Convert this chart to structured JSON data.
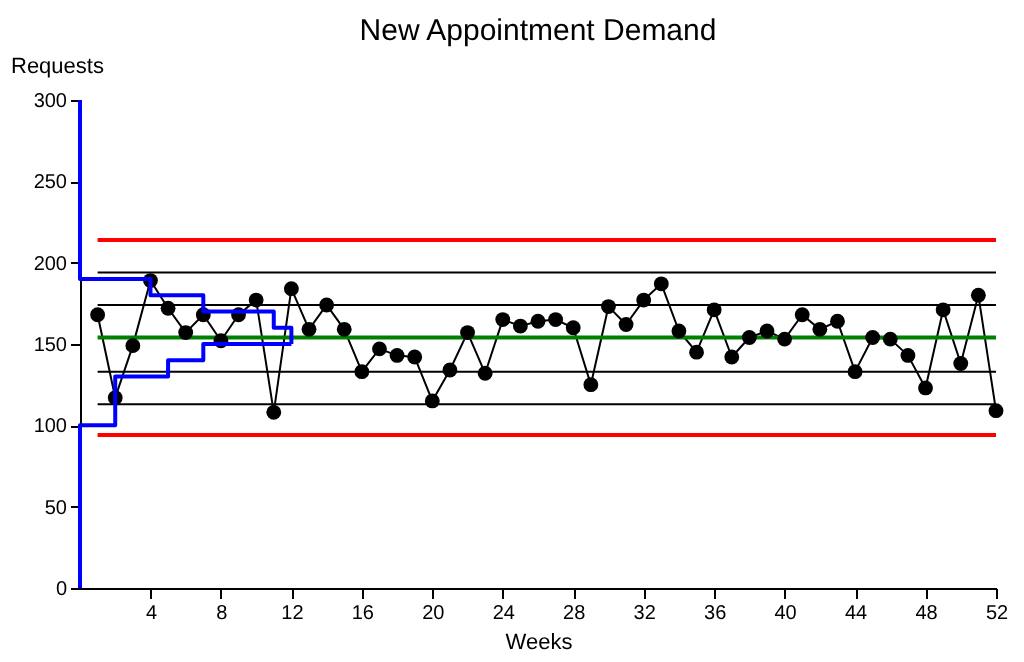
{
  "chart_data": {
    "type": "line",
    "title": "New Appointment Demand",
    "xlabel": "Weeks",
    "ylabel": "Requests",
    "xlim": [
      0,
      52
    ],
    "xticks": [
      4,
      8,
      12,
      16,
      20,
      24,
      28,
      32,
      36,
      40,
      44,
      48,
      52
    ],
    "ylim": [
      0,
      300
    ],
    "yticks": [
      0,
      50,
      100,
      150,
      200,
      250,
      300
    ],
    "grid": false,
    "series": [
      {
        "color": "#000000",
        "marker": "circle",
        "line_style": "solid",
        "x": [
          1,
          2,
          3,
          4,
          5,
          6,
          7,
          8,
          9,
          10,
          11,
          12,
          13,
          14,
          15,
          16,
          17,
          18,
          19,
          20,
          21,
          22,
          23,
          24,
          25,
          26,
          27,
          28,
          29,
          30,
          31,
          32,
          33,
          34,
          35,
          36,
          37,
          38,
          39,
          40,
          41,
          42,
          43,
          44,
          45,
          46,
          47,
          48,
          49,
          50,
          51,
          52
        ],
        "values": [
          168,
          117,
          149,
          189,
          172,
          157,
          168,
          152,
          168,
          177,
          108,
          184,
          159,
          174,
          159,
          133,
          147,
          143,
          142,
          115,
          134,
          157,
          132,
          165,
          161,
          164,
          165,
          160,
          125,
          173,
          162,
          177,
          187,
          158,
          145,
          171,
          142,
          154,
          158,
          153,
          168,
          159,
          164,
          133,
          154,
          153,
          143,
          123,
          171,
          138,
          180,
          109
        ]
      },
      {
        "type": "line",
        "color": "#0000ff",
        "marker": "none",
        "line_style": "solid",
        "x": [
          0,
          0,
          4,
          4,
          7,
          7,
          11,
          11,
          12,
          12
        ],
        "values": [
          300,
          190,
          190,
          180,
          180,
          170,
          170,
          160,
          160,
          150
        ]
      },
      {
        "type": "line",
        "color": "#0000ff",
        "marker": "none",
        "line_style": "solid",
        "x": [
          0,
          0,
          2,
          2,
          5,
          5,
          7,
          7,
          12
        ],
        "values": [
          0,
          100,
          100,
          130,
          130,
          140,
          140,
          150,
          150
        ]
      }
    ],
    "ref_lines": [
      {
        "axis": "y",
        "value": 214,
        "color": "#ff0000",
        "line_style": "solid"
      },
      {
        "axis": "y",
        "value": 194,
        "color": "#000000",
        "line_style": "solid"
      },
      {
        "axis": "y",
        "value": 174,
        "color": "#000000",
        "line_style": "solid"
      },
      {
        "axis": "y",
        "value": 154,
        "color": "#008000",
        "line_style": "solid"
      },
      {
        "axis": "y",
        "value": 133,
        "color": "#000000",
        "line_style": "solid"
      },
      {
        "axis": "y",
        "value": 113,
        "color": "#000000",
        "line_style": "solid"
      },
      {
        "axis": "y",
        "value": 94,
        "color": "#ff0000",
        "line_style": "solid"
      }
    ]
  }
}
